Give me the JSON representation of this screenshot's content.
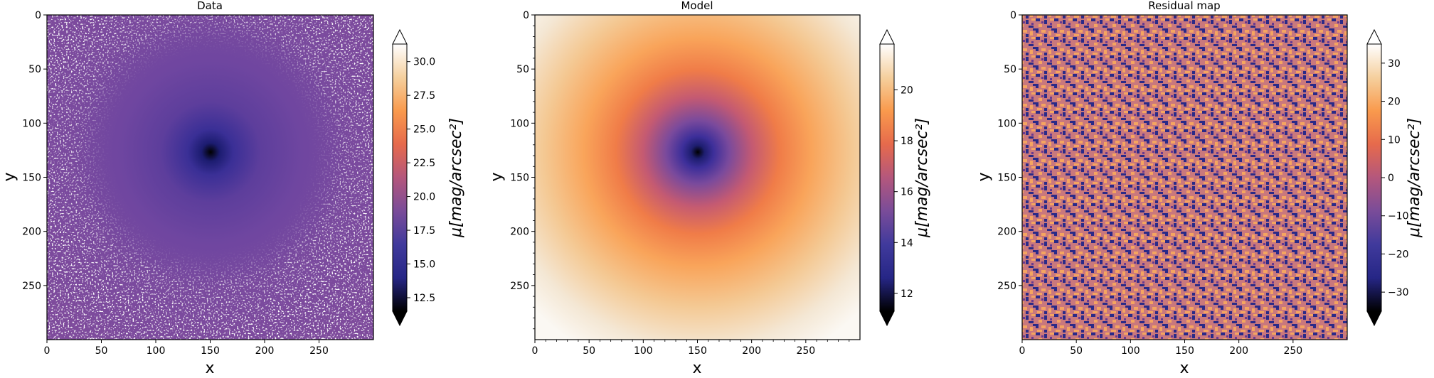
{
  "chart_data": [
    {
      "type": "heatmap",
      "title": "Data",
      "xlabel": "x",
      "ylabel": "y",
      "xlim": [
        0,
        300
      ],
      "ylim": [
        300,
        0
      ],
      "xticks": [
        0,
        50,
        100,
        150,
        200,
        250
      ],
      "yticks": [
        0,
        50,
        100,
        150,
        200,
        250
      ],
      "colorbar": {
        "label": "μ[mag/arcsec²]",
        "ticks": [
          "12.5",
          "15.0",
          "17.5",
          "20.0",
          "22.5",
          "25.0",
          "27.5",
          "30.0"
        ],
        "range": [
          11.5,
          31.3
        ],
        "colormap": "CMRmap-like (black–blue–purple–orange–white)",
        "extend": "both"
      },
      "description": "noisy surface-brightness image centred at (150,150); peak ~12 mag at centre, rising to ~20 in the halo, white (>30) noise at edges"
    },
    {
      "type": "heatmap",
      "title": "Model",
      "xlabel": "x",
      "ylabel": "y",
      "xlim": [
        0,
        300
      ],
      "ylim": [
        300,
        0
      ],
      "xticks": [
        0,
        50,
        100,
        150,
        200,
        250
      ],
      "yticks": [
        0,
        50,
        100,
        150,
        200,
        250
      ],
      "colorbar": {
        "label": "μ[mag/arcsec²]",
        "ticks": [
          "12",
          "14",
          "16",
          "18",
          "20"
        ],
        "range": [
          11.3,
          21.8
        ],
        "colormap": "CMRmap-like (black–blue–purple–orange–white)",
        "extend": "both"
      },
      "description": "smooth radial model centred at (150,150); ~11.5 at centre increasing to ~21.5 at corners"
    },
    {
      "type": "heatmap",
      "title": "Residual map",
      "xlabel": "x",
      "ylabel": "y",
      "xlim": [
        0,
        300
      ],
      "ylim": [
        300,
        0
      ],
      "xticks": [
        0,
        50,
        100,
        150,
        200,
        250
      ],
      "yticks": [
        0,
        50,
        100,
        150,
        200,
        250
      ],
      "colorbar": {
        "label": "μ[mag/arcsec²]",
        "ticks": [
          "−30",
          "−20",
          "−10",
          "0",
          "10",
          "20",
          "30"
        ],
        "range": [
          -35,
          35
        ],
        "colormap": "CMRmap-like (black–blue–purple–orange–white)",
        "extend": "both"
      },
      "description": "pixel noise alternating between ~+15 (orange) and ~−15 (blue)"
    }
  ]
}
